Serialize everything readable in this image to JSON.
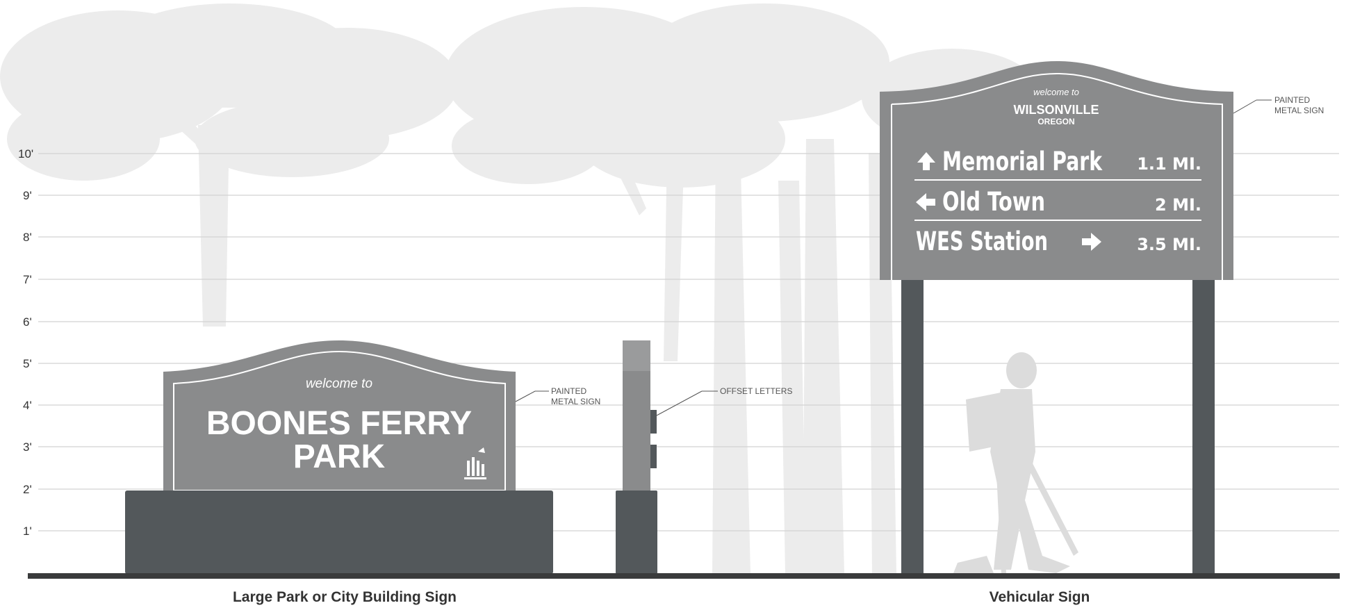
{
  "height_scale": {
    "labels": [
      "10'",
      "9'",
      "8'",
      "7'",
      "6'",
      "5'",
      "4'",
      "3'",
      "2'",
      "1'"
    ]
  },
  "park_sign": {
    "welcome": "welcome to",
    "name_line1": "BOONES FERRY",
    "name_line2": "PARK",
    "callout": [
      "PAINTED",
      "METAL SIGN"
    ],
    "caption": "Large Park or City Building Sign"
  },
  "post": {
    "callout": "OFFSET LETTERS"
  },
  "vehicular_sign": {
    "welcome": "welcome to",
    "city": "WILSONVILLE",
    "state": "OREGON",
    "rows": [
      {
        "arrow": "up",
        "destination": "Memorial Park",
        "distance": "1.1 MI."
      },
      {
        "arrow": "left",
        "destination": "Old Town",
        "distance": "2 MI."
      },
      {
        "arrow": "right",
        "destination": "WES Station",
        "distance": "3.5 MI."
      }
    ],
    "callout": [
      "PAINTED",
      "METAL SIGN"
    ],
    "caption": "Vehicular Sign"
  },
  "colors": {
    "sign_face": "#8a8b8c",
    "base": "#53585b",
    "ground": "#3a3b3c",
    "trees": "#ececec",
    "grid": "#d2d2d2",
    "text_white": "#ffffff",
    "label_text": "#333333"
  },
  "icons": [
    "tree-silhouette-icon",
    "hiker-silhouette-icon",
    "city-logo-icon",
    "arrow-up-icon",
    "arrow-left-icon",
    "arrow-right-icon"
  ]
}
